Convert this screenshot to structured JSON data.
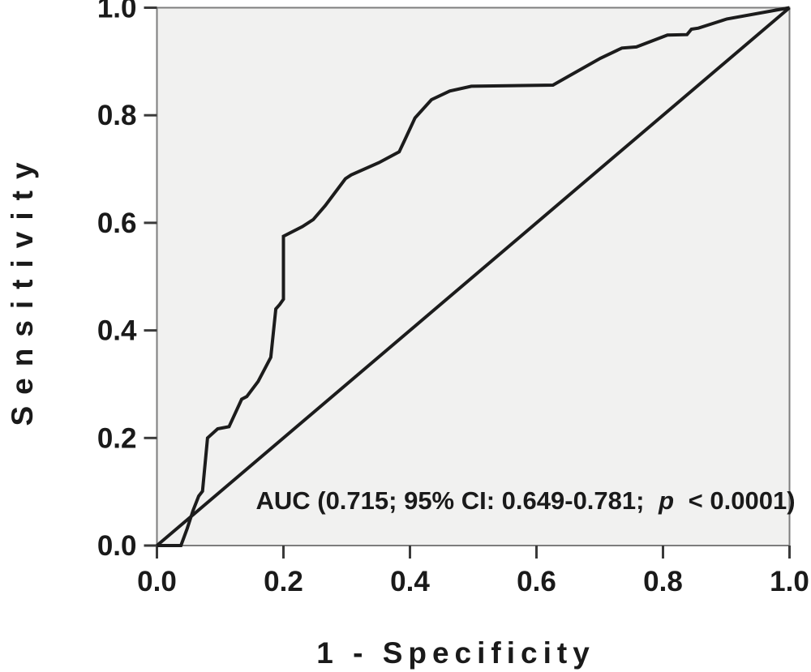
{
  "figure": {
    "background": "#ffffff",
    "text_color": "#1a1a1a"
  },
  "chart_data": {
    "type": "line",
    "subtype": "ROC curve",
    "title": "",
    "xlabel": "1 - Specificity",
    "ylabel": "Sensitivity",
    "xlim": [
      0.0,
      1.0
    ],
    "ylim": [
      0.0,
      1.0
    ],
    "grid": false,
    "legend_position": "none",
    "plot_background": "#f1f1f0",
    "frame_color": "#7d7d7d",
    "line_color": "#1c1c1c",
    "tick_color": "#3a3a3a",
    "x_ticks": [
      0.0,
      0.2,
      0.4,
      0.6,
      0.8,
      1.0
    ],
    "x_tick_labels": [
      "0.0",
      "0.2",
      "0.4",
      "0.6",
      "0.8",
      "1.0"
    ],
    "y_ticks": [
      0.0,
      0.2,
      0.4,
      0.6,
      0.8,
      1.0
    ],
    "y_tick_labels": [
      "0.0",
      "0.2",
      "0.4",
      "0.6",
      "0.8",
      "1.0"
    ],
    "series": [
      {
        "name": "ROC curve",
        "points": [
          [
            0.0,
            0.0
          ],
          [
            0.038,
            0.0
          ],
          [
            0.048,
            0.032
          ],
          [
            0.057,
            0.065
          ],
          [
            0.066,
            0.092
          ],
          [
            0.072,
            0.101
          ],
          [
            0.08,
            0.2
          ],
          [
            0.096,
            0.217
          ],
          [
            0.114,
            0.221
          ],
          [
            0.134,
            0.272
          ],
          [
            0.142,
            0.277
          ],
          [
            0.16,
            0.305
          ],
          [
            0.18,
            0.35
          ],
          [
            0.188,
            0.44
          ],
          [
            0.194,
            0.448
          ],
          [
            0.2,
            0.458
          ],
          [
            0.2,
            0.575
          ],
          [
            0.23,
            0.593
          ],
          [
            0.247,
            0.606
          ],
          [
            0.266,
            0.632
          ],
          [
            0.298,
            0.682
          ],
          [
            0.307,
            0.689
          ],
          [
            0.351,
            0.712
          ],
          [
            0.383,
            0.732
          ],
          [
            0.391,
            0.752
          ],
          [
            0.408,
            0.795
          ],
          [
            0.434,
            0.829
          ],
          [
            0.463,
            0.845
          ],
          [
            0.497,
            0.854
          ],
          [
            0.626,
            0.856
          ],
          [
            0.65,
            0.872
          ],
          [
            0.701,
            0.906
          ],
          [
            0.735,
            0.925
          ],
          [
            0.758,
            0.927
          ],
          [
            0.807,
            0.949
          ],
          [
            0.838,
            0.95
          ],
          [
            0.845,
            0.96
          ],
          [
            0.856,
            0.962
          ],
          [
            0.901,
            0.979
          ],
          [
            1.0,
            1.0
          ]
        ]
      },
      {
        "name": "Reference diagonal",
        "points": [
          [
            0.0,
            0.0
          ],
          [
            1.0,
            1.0
          ]
        ]
      }
    ],
    "annotation": {
      "full_text": "AUC (0.715; 95% CI: 0.649-0.781; p < 0.0001)",
      "prefix": "AUC (0.715; 95% CI: 0.649-0.781;",
      "italic": "p",
      "suffix": "< 0.0001)",
      "auc": 0.715,
      "ci_low": 0.649,
      "ci_high": 0.781,
      "p_value": "< 0.0001"
    }
  }
}
